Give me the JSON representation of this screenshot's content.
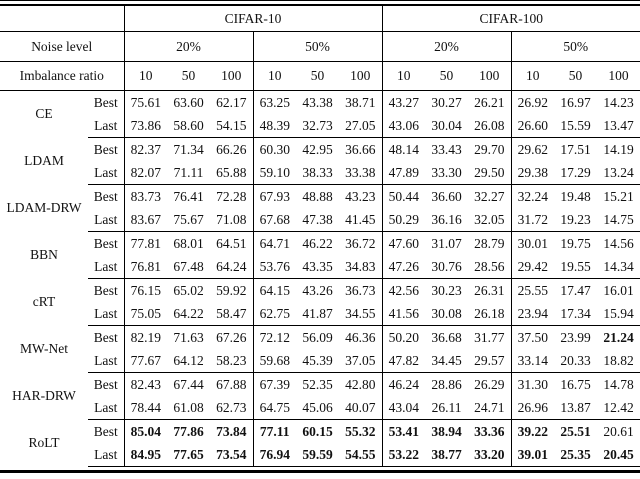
{
  "colors": {
    "background": "#ffffff",
    "text": "#111111",
    "rule": "#000000"
  },
  "table": {
    "dataset_headers": [
      "CIFAR-10",
      "CIFAR-100"
    ],
    "noise_row_label": "Noise level",
    "noise_levels": [
      "20%",
      "50%",
      "20%",
      "50%"
    ],
    "imbalance_row_label": "Imbalance ratio",
    "imbalance_ratios": [
      "10",
      "50",
      "100",
      "10",
      "50",
      "100",
      "10",
      "50",
      "100",
      "10",
      "50",
      "100"
    ],
    "row_sublabels": [
      "Best",
      "Last"
    ],
    "methods": [
      {
        "name": "CE",
        "best": [
          "75.61",
          "63.60",
          "62.17",
          "63.25",
          "43.38",
          "38.71",
          "43.27",
          "30.27",
          "26.21",
          "26.92",
          "16.97",
          "14.23"
        ],
        "last": [
          "73.86",
          "58.60",
          "54.15",
          "48.39",
          "32.73",
          "27.05",
          "43.06",
          "30.04",
          "26.08",
          "26.60",
          "15.59",
          "13.47"
        ],
        "best_bold": [],
        "last_bold": []
      },
      {
        "name": "LDAM",
        "best": [
          "82.37",
          "71.34",
          "66.26",
          "60.30",
          "42.95",
          "36.66",
          "48.14",
          "33.43",
          "29.70",
          "29.62",
          "17.51",
          "14.19"
        ],
        "last": [
          "82.07",
          "71.11",
          "65.88",
          "59.10",
          "38.33",
          "33.38",
          "47.89",
          "33.30",
          "29.50",
          "29.38",
          "17.29",
          "13.24"
        ],
        "best_bold": [],
        "last_bold": []
      },
      {
        "name": "LDAM-DRW",
        "best": [
          "83.73",
          "76.41",
          "72.28",
          "67.93",
          "48.88",
          "43.23",
          "50.44",
          "36.60",
          "32.27",
          "32.24",
          "19.48",
          "15.21"
        ],
        "last": [
          "83.67",
          "75.67",
          "71.08",
          "67.68",
          "47.38",
          "41.45",
          "50.29",
          "36.16",
          "32.05",
          "31.72",
          "19.23",
          "14.75"
        ],
        "best_bold": [],
        "last_bold": []
      },
      {
        "name": "BBN",
        "best": [
          "77.81",
          "68.01",
          "64.51",
          "64.71",
          "46.22",
          "36.72",
          "47.60",
          "31.07",
          "28.79",
          "30.01",
          "19.75",
          "14.56"
        ],
        "last": [
          "76.81",
          "67.48",
          "64.24",
          "53.76",
          "43.35",
          "34.83",
          "47.26",
          "30.76",
          "28.56",
          "29.42",
          "19.55",
          "14.34"
        ],
        "best_bold": [],
        "last_bold": []
      },
      {
        "name": "cRT",
        "best": [
          "76.15",
          "65.02",
          "59.92",
          "64.15",
          "43.26",
          "36.73",
          "42.56",
          "30.23",
          "26.31",
          "25.55",
          "17.47",
          "16.01"
        ],
        "last": [
          "75.05",
          "64.22",
          "58.47",
          "62.75",
          "41.87",
          "34.55",
          "41.56",
          "30.08",
          "26.18",
          "23.94",
          "17.34",
          "15.94"
        ],
        "best_bold": [],
        "last_bold": []
      },
      {
        "name": "MW-Net",
        "best": [
          "82.19",
          "71.63",
          "67.26",
          "72.12",
          "56.09",
          "46.36",
          "50.20",
          "36.68",
          "31.77",
          "37.50",
          "23.99",
          "21.24"
        ],
        "last": [
          "77.67",
          "64.12",
          "58.23",
          "59.68",
          "45.39",
          "37.05",
          "47.82",
          "34.45",
          "29.57",
          "33.14",
          "20.33",
          "18.82"
        ],
        "best_bold": [
          11
        ],
        "last_bold": []
      },
      {
        "name": "HAR-DRW",
        "best": [
          "82.43",
          "67.44",
          "67.88",
          "67.39",
          "52.35",
          "42.80",
          "46.24",
          "28.86",
          "26.29",
          "31.30",
          "16.75",
          "14.78"
        ],
        "last": [
          "78.44",
          "61.08",
          "62.73",
          "64.75",
          "45.06",
          "40.07",
          "43.04",
          "26.11",
          "24.71",
          "26.96",
          "13.87",
          "12.42"
        ],
        "best_bold": [],
        "last_bold": []
      },
      {
        "name": "RoLT",
        "best": [
          "85.04",
          "77.86",
          "73.84",
          "77.11",
          "60.15",
          "55.32",
          "53.41",
          "38.94",
          "33.36",
          "39.22",
          "25.51",
          "20.61"
        ],
        "last": [
          "84.95",
          "77.65",
          "73.54",
          "76.94",
          "59.59",
          "54.55",
          "53.22",
          "38.77",
          "33.20",
          "39.01",
          "25.35",
          "20.45"
        ],
        "best_bold": [
          0,
          1,
          2,
          3,
          4,
          5,
          6,
          7,
          8,
          9,
          10
        ],
        "last_bold": [
          0,
          1,
          2,
          3,
          4,
          5,
          6,
          7,
          8,
          9,
          10,
          11
        ]
      }
    ]
  }
}
